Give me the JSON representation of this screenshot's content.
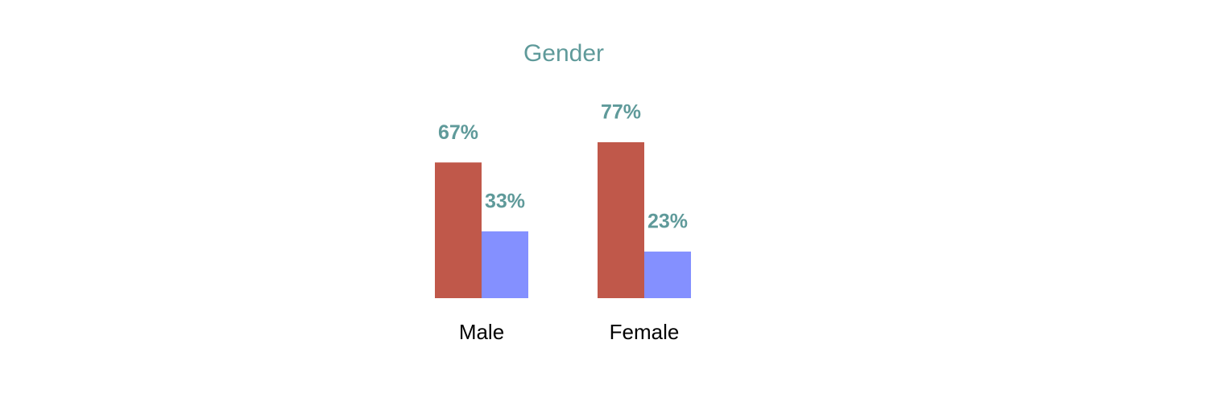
{
  "chart_data": {
    "type": "bar",
    "title": "Gender",
    "categories": [
      "Male",
      "Female"
    ],
    "series": [
      {
        "color": "#c0584a",
        "values": [
          67,
          77
        ],
        "value_labels": [
          "67%",
          "77%"
        ]
      },
      {
        "color": "#8490ff",
        "values": [
          33,
          23
        ],
        "value_labels": [
          "33%",
          "23%"
        ]
      }
    ]
  }
}
